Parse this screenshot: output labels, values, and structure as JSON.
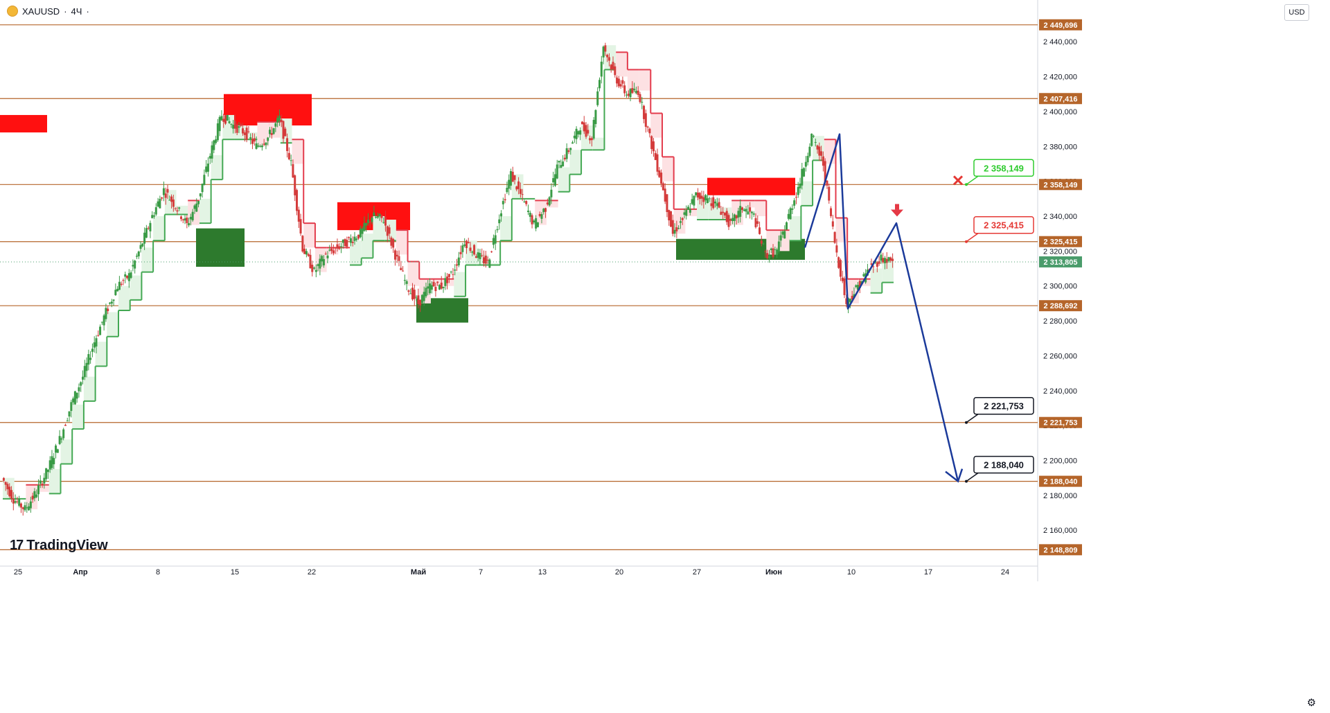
{
  "header": {
    "symbol": "XAUUSD",
    "separator": "·",
    "timeframe": "4Ч",
    "extra": "·"
  },
  "currency": "USD",
  "logo": "TradingView",
  "colors": {
    "level_line": "#b5652a",
    "level_label_bg": "#b5652a",
    "up_candle": "#3a9b46",
    "down_candle": "#d43b3b",
    "trail_green": "#43a853",
    "trail_red": "#e33b4c",
    "fill_green": "#e3f4e4",
    "fill_red": "#fde1e3",
    "supply_zone": "#ff1010",
    "demand_zone": "#2d7a2d",
    "projection": "#1b3a9a",
    "last_price": "#4a9c6b"
  },
  "chart_data": {
    "type": "candlestick",
    "symbol": "XAUUSD",
    "timeframe": "4Ч",
    "ylim": [
      2143,
      2452
    ],
    "y_ticks": [
      "2 440,000",
      "2 420,000",
      "2 400,000",
      "2 380,000",
      "2 360,000",
      "2 340,000",
      "2 320,000",
      "2 300,000",
      "2 280,000",
      "2 260,000",
      "2 240,000",
      "2 220,000",
      "2 200,000",
      "2 180,000",
      "2 160,000"
    ],
    "x_ticks": [
      "25",
      "Апр",
      "8",
      "15",
      "22",
      "Май",
      "7",
      "13",
      "20",
      "27",
      "Июн",
      "10",
      "17",
      "24"
    ],
    "price_levels": [
      {
        "value": 2449.696,
        "label": "2 449,696"
      },
      {
        "value": 2407.416,
        "label": "2 407,416"
      },
      {
        "value": 2358.149,
        "label": "2 358,149"
      },
      {
        "value": 2325.415,
        "label": "2 325,415"
      },
      {
        "value": 2288.692,
        "label": "2 288,692"
      },
      {
        "value": 2221.753,
        "label": "2 221,753"
      },
      {
        "value": 2188.04,
        "label": "2 188,040"
      },
      {
        "value": 2148.809,
        "label": "2 148,809"
      }
    ],
    "last_price": {
      "value": 2313.805,
      "label": "2 313,805"
    },
    "callouts": [
      {
        "value": 2358.149,
        "label": "2 358,149",
        "color": "#2ecc2e"
      },
      {
        "value": 2325.415,
        "label": "2 325,415",
        "color": "#e53935"
      },
      {
        "value": 2221.753,
        "label": "2 221,753",
        "color": "#131722"
      },
      {
        "value": 2188.04,
        "label": "2 188,040",
        "color": "#131722"
      }
    ],
    "price_path": [
      [
        "25",
        2190
      ],
      [
        "",
        2178
      ],
      [
        "",
        2172
      ],
      [
        "",
        2182
      ],
      [
        "",
        2195
      ],
      [
        "Апр",
        2212
      ],
      [
        "",
        2232
      ],
      [
        "",
        2248
      ],
      [
        "",
        2268
      ],
      [
        "",
        2285
      ],
      [
        "",
        2300
      ],
      [
        "8",
        2306
      ],
      [
        "",
        2322
      ],
      [
        "",
        2340
      ],
      [
        "",
        2355
      ],
      [
        "",
        2346
      ],
      [
        "",
        2335
      ],
      [
        "",
        2350
      ],
      [
        "15",
        2375
      ],
      [
        "",
        2398
      ],
      [
        "",
        2392
      ],
      [
        "",
        2388
      ],
      [
        "",
        2380
      ],
      [
        "",
        2385
      ],
      [
        "22",
        2396
      ],
      [
        "",
        2370
      ],
      [
        "",
        2322
      ],
      [
        "",
        2308
      ],
      [
        "",
        2318
      ],
      [
        "",
        2322
      ],
      [
        "",
        2326
      ],
      [
        "",
        2330
      ],
      [
        "",
        2340
      ],
      [
        "",
        2338
      ],
      [
        "Май",
        2318
      ],
      [
        "",
        2300
      ],
      [
        "",
        2290
      ],
      [
        "",
        2300
      ],
      [
        "",
        2300
      ],
      [
        "7",
        2308
      ],
      [
        "",
        2326
      ],
      [
        "",
        2318
      ],
      [
        "",
        2313
      ],
      [
        "",
        2340
      ],
      [
        "13",
        2364
      ],
      [
        "",
        2350
      ],
      [
        "",
        2335
      ],
      [
        "",
        2345
      ],
      [
        "",
        2368
      ],
      [
        "",
        2378
      ],
      [
        "",
        2392
      ],
      [
        "",
        2385
      ],
      [
        "20",
        2438
      ],
      [
        "",
        2420
      ],
      [
        "",
        2410
      ],
      [
        "",
        2412
      ],
      [
        "",
        2385
      ],
      [
        "",
        2360
      ],
      [
        "27",
        2330
      ],
      [
        "",
        2340
      ],
      [
        "",
        2352
      ],
      [
        "",
        2350
      ],
      [
        "",
        2345
      ],
      [
        "",
        2335
      ],
      [
        "",
        2345
      ],
      [
        "",
        2340
      ],
      [
        "Июн",
        2318
      ],
      [
        "",
        2320
      ],
      [
        "",
        2340
      ],
      [
        "",
        2360
      ],
      [
        "",
        2386
      ],
      [
        "",
        2370
      ],
      [
        "",
        2325
      ],
      [
        "10",
        2290
      ],
      [
        "",
        2300
      ],
      [
        "",
        2310
      ],
      [
        "",
        2316
      ],
      [
        "",
        2314
      ]
    ],
    "supply_zones": [
      {
        "from": "",
        "to": "",
        "top": 2398,
        "bottom": 2388
      },
      {
        "from": "",
        "to": "",
        "top": 2410,
        "bottom": 2392
      },
      {
        "from": "",
        "to": "",
        "top": 2348,
        "bottom": 2332
      },
      {
        "from": "",
        "to": "",
        "top": 2362,
        "bottom": 2352
      }
    ],
    "demand_zones": [
      {
        "top": 2333,
        "bottom": 2311
      },
      {
        "top": 2293,
        "bottom": 2279
      },
      {
        "top": 2327,
        "bottom": 2315
      }
    ],
    "projection": {
      "points": [
        2322,
        2387,
        2287,
        2336,
        2188
      ],
      "arrow_target": 2188.04
    }
  }
}
